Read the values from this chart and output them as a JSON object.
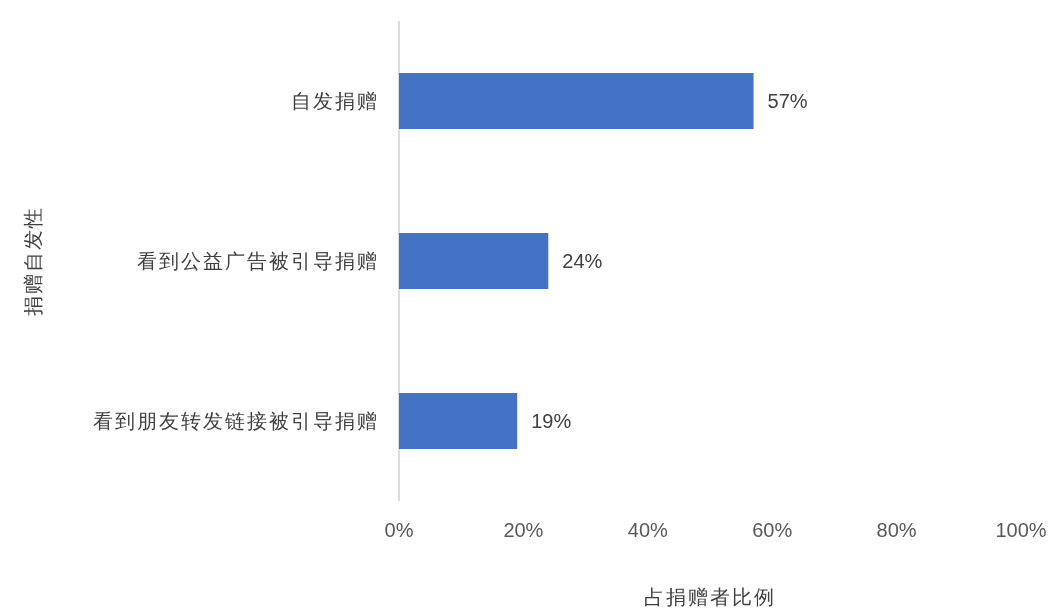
{
  "chart_data": {
    "type": "bar",
    "orientation": "horizontal",
    "xlabel": "占捐赠者比例",
    "ylabel": "捐赠自发性",
    "categories": [
      "自发捐赠",
      "看到公益广告被引导捐赠",
      "看到朋友转发链接被引导捐赠"
    ],
    "values": [
      57,
      24,
      19
    ],
    "value_labels": [
      "57%",
      "24%",
      "19%"
    ],
    "color": "#4472c4",
    "xlim": [
      0,
      100
    ],
    "xticks": [
      {
        "value": 0,
        "label": "0%"
      },
      {
        "value": 20,
        "label": "20%"
      },
      {
        "value": 40,
        "label": "40%"
      },
      {
        "value": 60,
        "label": "60%"
      },
      {
        "value": 80,
        "label": "80%"
      },
      {
        "value": 100,
        "label": "100%"
      }
    ],
    "grid": false
  }
}
